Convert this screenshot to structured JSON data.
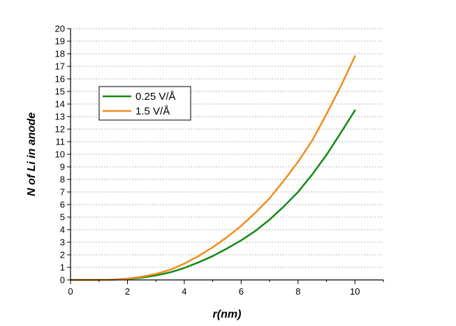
{
  "chart_data": {
    "type": "line",
    "xlabel": "r(nm)",
    "ylabel": "N of Li in anode",
    "xlim": [
      0,
      11
    ],
    "ylim": [
      0,
      20
    ],
    "x_ticks": [
      "0",
      "2",
      "4",
      "6",
      "8",
      "10"
    ],
    "y_ticks": [
      "0",
      "1",
      "2",
      "3",
      "4",
      "5",
      "6",
      "7",
      "8",
      "9",
      "10",
      "11",
      "12",
      "13",
      "14",
      "15",
      "16",
      "17",
      "18",
      "19",
      "20"
    ],
    "grid": "horizontal dashed",
    "legend_position": "upper-left",
    "series": [
      {
        "name": "0.25 V/Å",
        "color": "#138a13",
        "x": [
          0,
          1,
          1.5,
          2,
          2.5,
          3,
          3.5,
          4,
          4.5,
          5,
          5.5,
          6,
          6.5,
          7,
          7.5,
          8,
          8.5,
          9,
          9.5,
          10
        ],
        "y": [
          0,
          0,
          0.02,
          0.08,
          0.18,
          0.35,
          0.6,
          0.95,
          1.4,
          1.9,
          2.5,
          3.15,
          3.9,
          4.8,
          5.85,
          7.0,
          8.4,
          9.95,
          11.7,
          13.5
        ]
      },
      {
        "name": "1.5 V/Å",
        "color": "#f28c1c",
        "x": [
          0,
          1,
          1.5,
          2,
          2.5,
          3,
          3.5,
          4,
          4.5,
          5,
          5.5,
          6,
          6.5,
          7,
          7.5,
          8,
          8.5,
          9,
          9.5,
          10
        ],
        "y": [
          0,
          0,
          0.03,
          0.1,
          0.25,
          0.48,
          0.8,
          1.3,
          1.9,
          2.6,
          3.4,
          4.3,
          5.35,
          6.5,
          7.9,
          9.4,
          11.1,
          13.2,
          15.4,
          17.8
        ]
      }
    ]
  }
}
